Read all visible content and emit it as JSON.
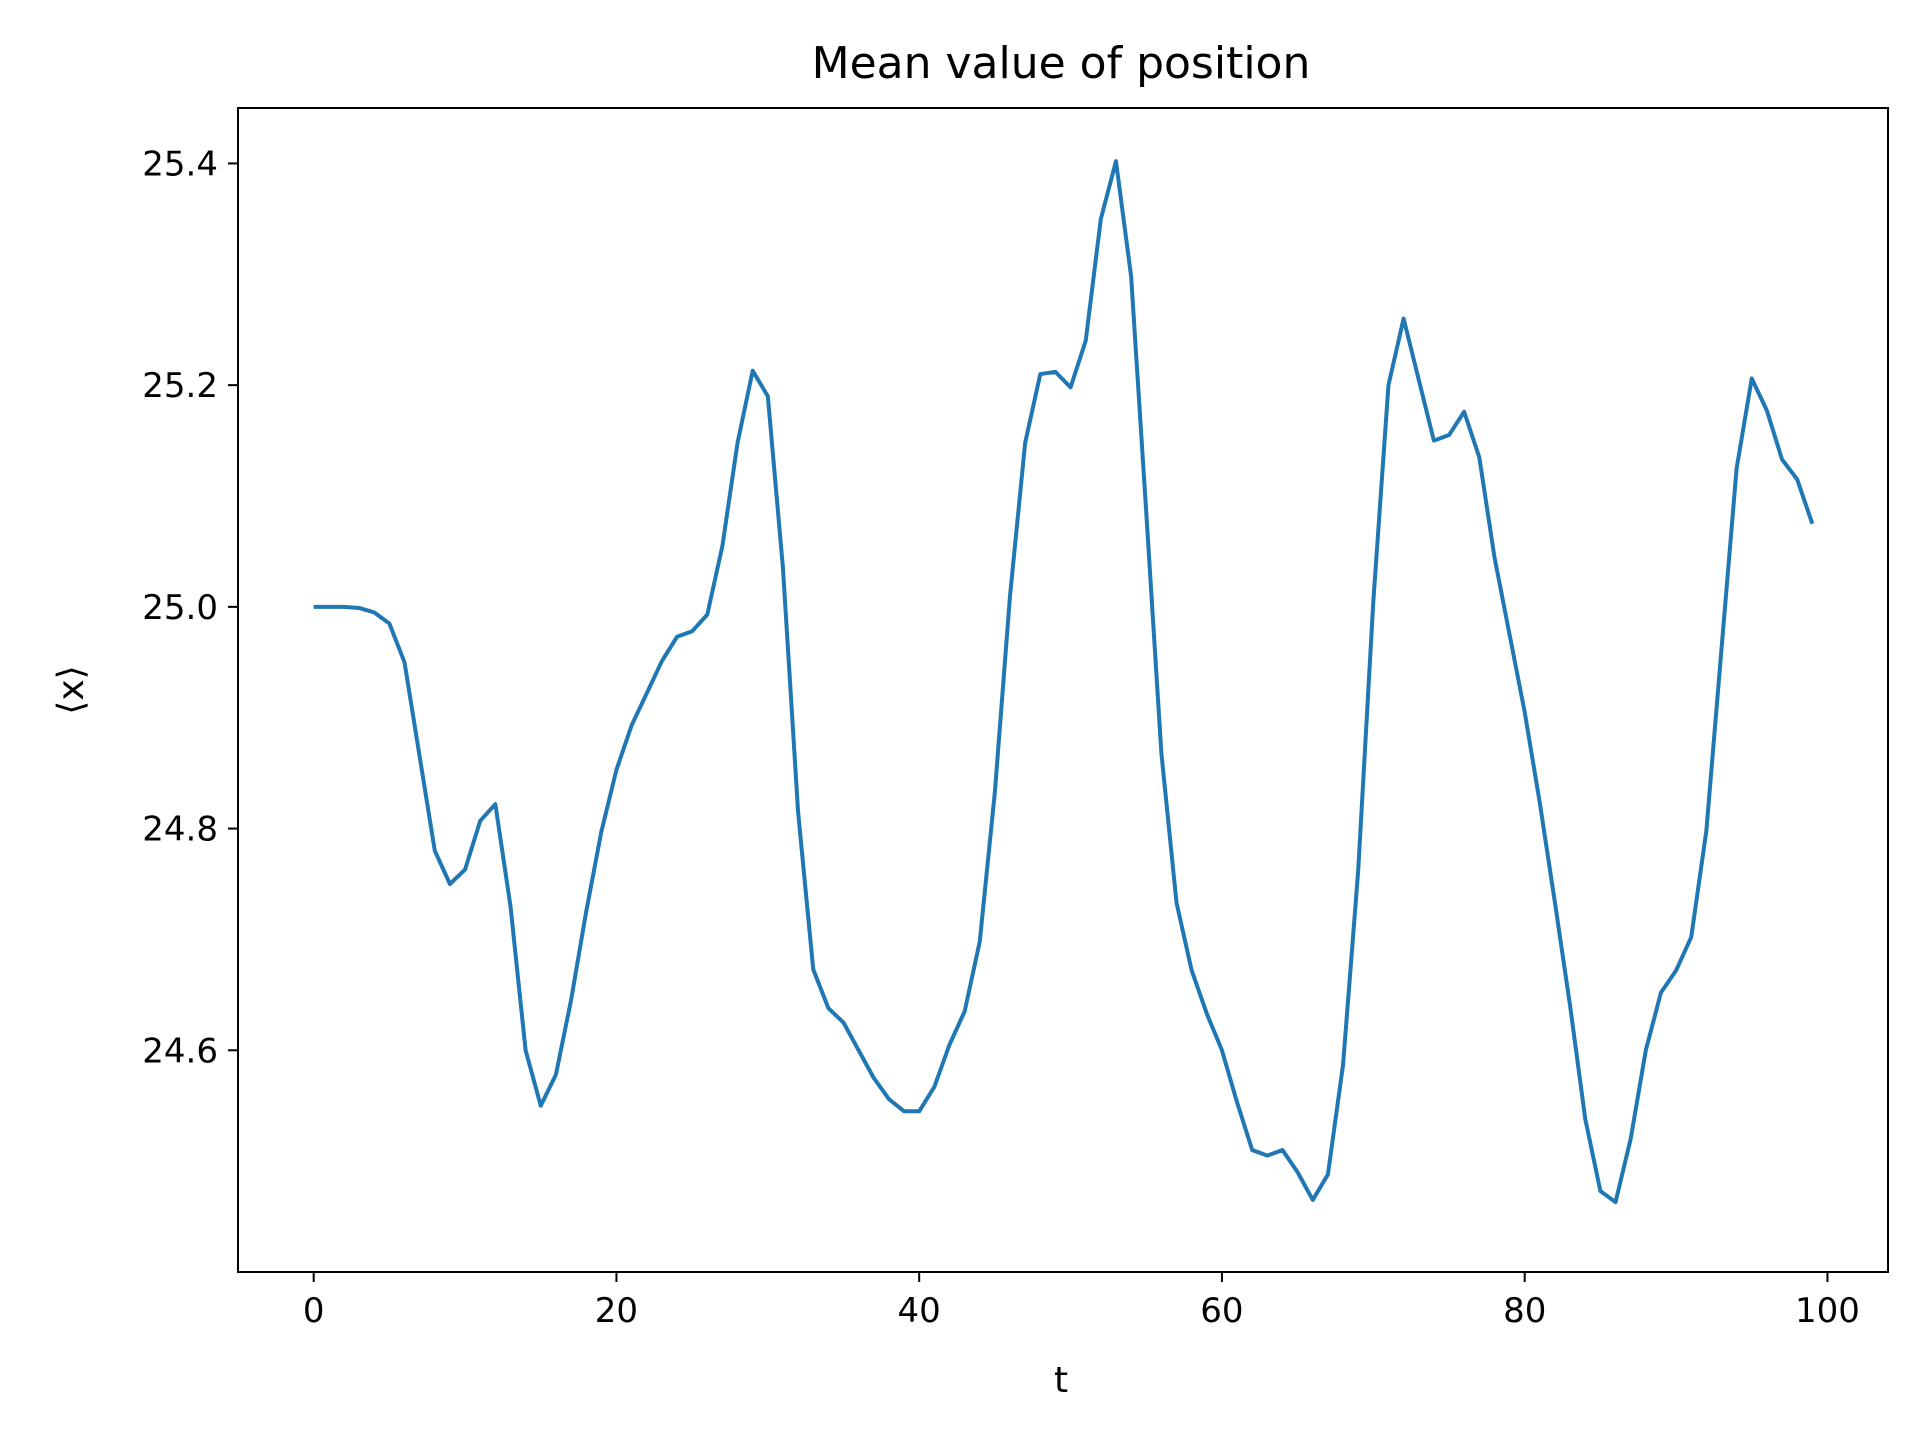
{
  "chart_data": {
    "type": "line",
    "title": "Mean value of position",
    "xlabel": "t",
    "ylabel": "⟨x⟩",
    "xlim": [
      -5,
      104
    ],
    "ylim": [
      24.4,
      25.45
    ],
    "xticks": [
      0,
      20,
      40,
      60,
      80,
      100
    ],
    "xtick_labels": [
      "0",
      "20",
      "40",
      "60",
      "80",
      "100"
    ],
    "yticks": [
      24.6,
      24.8,
      25.0,
      25.2,
      25.4
    ],
    "ytick_labels": [
      "24.6",
      "24.8",
      "25.0",
      "25.2",
      "25.4"
    ],
    "grid": false,
    "colors": {
      "line": "#1f77b4",
      "axes": "#000000"
    },
    "series": [
      {
        "x": [
          0,
          1,
          2,
          3,
          4,
          5,
          6,
          7,
          8,
          9,
          10,
          11,
          12,
          13,
          14,
          15,
          16,
          17,
          18,
          19,
          20,
          21,
          22,
          23,
          24,
          25,
          26,
          27,
          28,
          29,
          30,
          31,
          32,
          33,
          34,
          35,
          36,
          37,
          38,
          39,
          40,
          41,
          42,
          43,
          44,
          45,
          46,
          47,
          48,
          49,
          50,
          51,
          52,
          53,
          54,
          55,
          56,
          57,
          58,
          59,
          60,
          61,
          62,
          63,
          64,
          65,
          66,
          67,
          68,
          69,
          70,
          71,
          72,
          73,
          74,
          75,
          76,
          77,
          78,
          79,
          80,
          81,
          82,
          83,
          84,
          85,
          86,
          87,
          88,
          89,
          90,
          91,
          92,
          93,
          94,
          95,
          96,
          97,
          98,
          99
        ],
        "values": [
          25.0,
          25.0,
          25.0,
          24.999,
          24.995,
          24.985,
          24.95,
          24.865,
          24.78,
          24.75,
          24.763,
          24.807,
          24.822,
          24.73,
          24.6,
          24.55,
          24.578,
          24.645,
          24.725,
          24.797,
          24.853,
          24.893,
          24.922,
          24.951,
          24.973,
          24.978,
          24.993,
          25.055,
          25.148,
          25.213,
          25.19,
          25.035,
          24.815,
          24.673,
          24.638,
          24.625,
          24.6,
          24.575,
          24.556,
          24.545,
          24.545,
          24.567,
          24.605,
          24.635,
          24.698,
          24.833,
          25.01,
          25.148,
          25.21,
          25.212,
          25.198,
          25.24,
          25.35,
          25.402,
          25.298,
          25.085,
          24.868,
          24.733,
          24.672,
          24.633,
          24.6,
          24.553,
          24.51,
          24.505,
          24.51,
          24.49,
          24.465,
          24.488,
          24.587,
          24.762,
          25.005,
          25.2,
          25.26,
          25.205,
          25.15,
          25.155,
          25.176,
          25.135,
          25.045,
          24.975,
          24.905,
          24.823,
          24.733,
          24.64,
          24.538,
          24.473,
          24.463,
          24.52,
          24.6,
          24.652,
          24.672,
          24.702,
          24.798,
          24.962,
          25.125,
          25.206,
          25.177,
          25.133,
          25.115,
          25.075
        ]
      }
    ]
  }
}
